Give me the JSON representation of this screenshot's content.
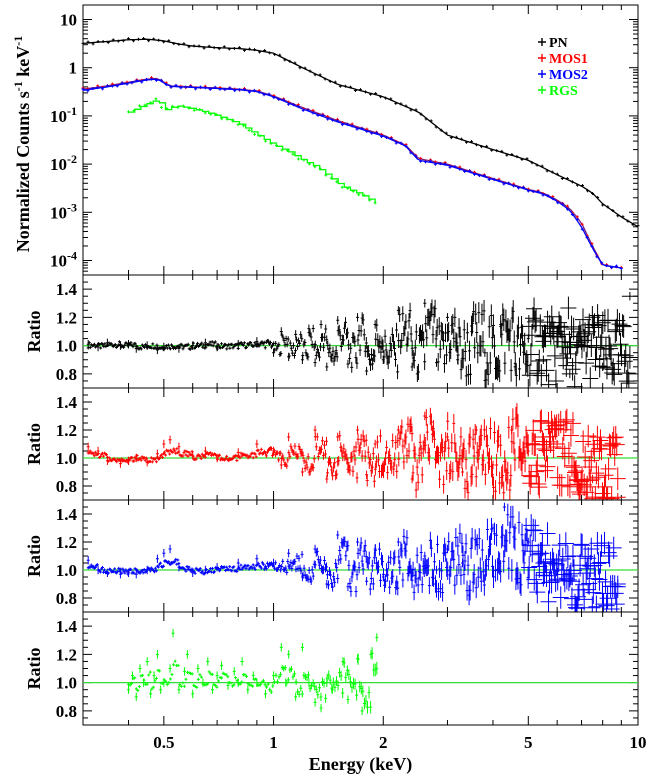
{
  "chart_data": [
    {
      "type": "line",
      "panel": "spectrum",
      "xlabel": "Energy (keV)",
      "ylabel_main": "Normalized Counts s",
      "ylabel_sup1": "-1",
      "ylabel_mid": " keV",
      "ylabel_sup2": "-1",
      "xscale": "log",
      "yscale": "log",
      "xlim": [
        0.3,
        10
      ],
      "ylim": [
        5e-05,
        20
      ],
      "x_ticks": [
        {
          "value": 0.5,
          "label": "0.5"
        },
        {
          "value": 1,
          "label": "1"
        },
        {
          "value": 2,
          "label": "2"
        },
        {
          "value": 5,
          "label": "5"
        },
        {
          "value": 10,
          "label": "10"
        }
      ],
      "y_ticks": [
        {
          "value": 0.0001,
          "base": "10",
          "exp": "-4"
        },
        {
          "value": 0.001,
          "base": "10",
          "exp": "-3"
        },
        {
          "value": 0.01,
          "base": "10",
          "exp": "-2"
        },
        {
          "value": 0.1,
          "base": "10",
          "exp": "-1"
        },
        {
          "value": 1,
          "base": "1",
          "exp": ""
        },
        {
          "value": 10,
          "base": "10",
          "exp": ""
        }
      ],
      "legend_position": "top-right",
      "series": [
        {
          "name": "PN",
          "color": "#000000",
          "x": [
            0.3,
            0.35,
            0.4,
            0.45,
            0.5,
            0.55,
            0.6,
            0.7,
            0.8,
            0.9,
            1.0,
            1.2,
            1.5,
            2.0,
            2.5,
            3.0,
            4.0,
            5.0,
            6.0,
            7.0,
            7.5,
            8.0,
            9.0,
            10.0
          ],
          "y": [
            3.2,
            3.5,
            3.8,
            3.9,
            3.6,
            3.1,
            2.8,
            2.6,
            2.5,
            2.3,
            2.0,
            1.0,
            0.45,
            0.25,
            0.12,
            0.04,
            0.02,
            0.012,
            0.006,
            0.0035,
            0.0025,
            0.0015,
            0.0008,
            0.0005
          ]
        },
        {
          "name": "MOS1",
          "color": "#ff0000",
          "x": [
            0.3,
            0.35,
            0.4,
            0.45,
            0.48,
            0.52,
            0.6,
            0.7,
            0.8,
            0.9,
            1.0,
            1.2,
            1.5,
            2.0,
            2.3,
            2.5,
            3.0,
            4.0,
            5.0,
            5.5,
            6.0,
            6.5,
            7.0,
            7.5,
            8.0,
            9.0
          ],
          "y": [
            0.36,
            0.42,
            0.5,
            0.58,
            0.6,
            0.42,
            0.4,
            0.38,
            0.36,
            0.33,
            0.26,
            0.15,
            0.08,
            0.04,
            0.025,
            0.013,
            0.01,
            0.005,
            0.003,
            0.0025,
            0.0018,
            0.0012,
            0.0006,
            0.0002,
            8e-05,
            7e-05
          ]
        },
        {
          "name": "MOS2",
          "color": "#0000ff",
          "x": [
            0.3,
            0.35,
            0.4,
            0.45,
            0.48,
            0.52,
            0.6,
            0.7,
            0.8,
            0.9,
            1.0,
            1.2,
            1.5,
            2.0,
            2.3,
            2.5,
            3.0,
            4.0,
            5.0,
            5.5,
            6.0,
            6.5,
            7.0,
            7.5,
            8.0,
            9.0
          ],
          "y": [
            0.34,
            0.4,
            0.48,
            0.56,
            0.58,
            0.41,
            0.39,
            0.37,
            0.35,
            0.32,
            0.25,
            0.14,
            0.075,
            0.038,
            0.024,
            0.012,
            0.0095,
            0.0048,
            0.0029,
            0.0024,
            0.0017,
            0.0011,
            0.0005,
            0.00018,
            8e-05,
            7e-05
          ]
        },
        {
          "name": "RGS",
          "color": "#00ff00",
          "x": [
            0.4,
            0.45,
            0.48,
            0.5,
            0.52,
            0.55,
            0.6,
            0.65,
            0.7,
            0.8,
            0.9,
            1.0,
            1.1,
            1.2,
            1.3,
            1.4,
            1.5,
            1.6,
            1.7,
            1.8,
            1.9
          ],
          "y": [
            0.12,
            0.18,
            0.22,
            0.13,
            0.15,
            0.16,
            0.14,
            0.12,
            0.1,
            0.07,
            0.04,
            0.025,
            0.018,
            0.012,
            0.009,
            0.006,
            0.004,
            0.003,
            0.0025,
            0.002,
            0.0016
          ]
        }
      ]
    },
    {
      "type": "scatter",
      "panel": "ratio-pn",
      "ylabel": "Ratio",
      "color": "#000000",
      "ylim": [
        0.7,
        1.5
      ],
      "y_ticks": [
        {
          "value": 0.8,
          "label": "0.8"
        },
        {
          "value": 1.0,
          "label": "1.0"
        },
        {
          "value": 1.2,
          "label": "1.2"
        },
        {
          "value": 1.4,
          "label": "1.4"
        }
      ],
      "reference_line": 1.0,
      "points": [
        [
          0.31,
          1.01
        ],
        [
          0.33,
          0.99
        ],
        [
          0.35,
          1.02
        ],
        [
          0.38,
          1.0
        ],
        [
          0.4,
          1.01
        ],
        [
          0.42,
          0.98
        ],
        [
          0.45,
          1.0
        ],
        [
          0.48,
          0.97
        ],
        [
          0.5,
          0.99
        ],
        [
          0.55,
          0.98
        ],
        [
          0.6,
          1.0
        ],
        [
          0.65,
          1.02
        ],
        [
          0.7,
          0.99
        ],
        [
          0.8,
          1.01
        ],
        [
          0.9,
          1.03
        ],
        [
          1.0,
          0.95
        ],
        [
          1.05,
          1.1
        ],
        [
          1.1,
          0.92
        ],
        [
          1.15,
          1.08
        ],
        [
          1.2,
          0.9
        ],
        [
          1.25,
          1.12
        ],
        [
          1.3,
          0.88
        ],
        [
          1.35,
          1.15
        ],
        [
          1.4,
          0.85
        ],
        [
          1.5,
          1.18
        ],
        [
          1.6,
          0.87
        ],
        [
          1.7,
          1.2
        ],
        [
          1.8,
          0.82
        ],
        [
          1.9,
          1.15
        ],
        [
          2.0,
          0.9
        ],
        [
          2.2,
          1.25
        ],
        [
          2.4,
          0.85
        ],
        [
          2.6,
          1.3
        ],
        [
          2.8,
          0.88
        ],
        [
          3.0,
          1.2
        ],
        [
          3.2,
          0.9
        ],
        [
          3.5,
          1.1
        ],
        [
          3.8,
          0.95
        ],
        [
          4.2,
          1.15
        ],
        [
          4.6,
          0.85
        ],
        [
          5.0,
          1.05
        ],
        [
          5.5,
          0.9
        ],
        [
          6.0,
          1.1
        ],
        [
          6.5,
          0.8
        ],
        [
          7.0,
          1.0
        ],
        [
          8.0,
          0.85
        ],
        [
          9.5,
          1.35
        ]
      ]
    },
    {
      "type": "scatter",
      "panel": "ratio-mos1",
      "ylabel": "Ratio",
      "color": "#ff0000",
      "ylim": [
        0.7,
        1.5
      ],
      "y_ticks": [
        {
          "value": 0.8,
          "label": "0.8"
        },
        {
          "value": 1.0,
          "label": "1.0"
        },
        {
          "value": 1.2,
          "label": "1.2"
        },
        {
          "value": 1.4,
          "label": "1.4"
        }
      ],
      "reference_line": 1.0,
      "points": [
        [
          0.31,
          1.08
        ],
        [
          0.33,
          1.05
        ],
        [
          0.35,
          0.98
        ],
        [
          0.38,
          0.96
        ],
        [
          0.4,
          0.98
        ],
        [
          0.42,
          1.0
        ],
        [
          0.45,
          0.97
        ],
        [
          0.48,
          1.03
        ],
        [
          0.5,
          1.1
        ],
        [
          0.52,
          1.13
        ],
        [
          0.55,
          1.08
        ],
        [
          0.6,
          1.02
        ],
        [
          0.65,
          1.05
        ],
        [
          0.7,
          1.0
        ],
        [
          0.8,
          1.04
        ],
        [
          0.9,
          1.1
        ],
        [
          1.0,
          1.05
        ],
        [
          1.05,
          0.95
        ],
        [
          1.1,
          1.15
        ],
        [
          1.2,
          0.9
        ],
        [
          1.3,
          1.2
        ],
        [
          1.4,
          0.85
        ],
        [
          1.5,
          1.15
        ],
        [
          1.6,
          0.92
        ],
        [
          1.7,
          1.2
        ],
        [
          1.8,
          0.88
        ],
        [
          1.9,
          1.1
        ],
        [
          2.0,
          0.95
        ],
        [
          2.2,
          1.2
        ],
        [
          2.4,
          0.85
        ],
        [
          2.6,
          1.3
        ],
        [
          2.8,
          1.0
        ],
        [
          3.0,
          1.15
        ],
        [
          3.3,
          0.9
        ],
        [
          3.6,
          1.2
        ],
        [
          4.0,
          0.95
        ],
        [
          4.5,
          1.2
        ],
        [
          5.0,
          1.05
        ],
        [
          5.5,
          1.15
        ],
        [
          6.0,
          1.1
        ],
        [
          6.8,
          0.84
        ],
        [
          7.5,
          0.85
        ],
        [
          8.8,
          0.72
        ]
      ]
    },
    {
      "type": "scatter",
      "panel": "ratio-mos2",
      "ylabel": "Ratio",
      "color": "#0000ff",
      "ylim": [
        0.7,
        1.5
      ],
      "y_ticks": [
        {
          "value": 0.8,
          "label": "0.8"
        },
        {
          "value": 1.0,
          "label": "1.0"
        },
        {
          "value": 1.2,
          "label": "1.2"
        },
        {
          "value": 1.4,
          "label": "1.4"
        }
      ],
      "reference_line": 1.0,
      "points": [
        [
          0.31,
          1.07
        ],
        [
          0.33,
          1.0
        ],
        [
          0.35,
          0.98
        ],
        [
          0.38,
          0.97
        ],
        [
          0.4,
          0.98
        ],
        [
          0.42,
          0.97
        ],
        [
          0.45,
          1.0
        ],
        [
          0.48,
          1.08
        ],
        [
          0.5,
          1.12
        ],
        [
          0.52,
          1.15
        ],
        [
          0.55,
          1.02
        ],
        [
          0.6,
          0.98
        ],
        [
          0.65,
          1.0
        ],
        [
          0.7,
          1.02
        ],
        [
          0.8,
          1.05
        ],
        [
          0.9,
          1.08
        ],
        [
          1.0,
          1.05
        ],
        [
          1.1,
          1.12
        ],
        [
          1.2,
          0.95
        ],
        [
          1.3,
          1.15
        ],
        [
          1.4,
          0.9
        ],
        [
          1.5,
          1.25
        ],
        [
          1.6,
          0.88
        ],
        [
          1.7,
          1.2
        ],
        [
          1.8,
          0.92
        ],
        [
          1.9,
          1.15
        ],
        [
          2.0,
          0.95
        ],
        [
          2.2,
          1.2
        ],
        [
          2.4,
          0.98
        ],
        [
          2.6,
          1.1
        ],
        [
          2.8,
          1.0
        ],
        [
          3.0,
          1.15
        ],
        [
          3.3,
          1.05
        ],
        [
          3.6,
          1.2
        ],
        [
          4.0,
          1.3
        ],
        [
          4.3,
          1.45
        ],
        [
          4.6,
          1.3
        ],
        [
          5.0,
          1.2
        ],
        [
          5.5,
          1.05
        ],
        [
          6.0,
          1.0
        ],
        [
          6.6,
          0.92
        ],
        [
          7.3,
          0.86
        ],
        [
          8.8,
          0.9
        ]
      ]
    },
    {
      "type": "scatter",
      "panel": "ratio-rgs",
      "ylabel": "Ratio",
      "color": "#00ff00",
      "ylim": [
        0.7,
        1.5
      ],
      "y_ticks": [
        {
          "value": 0.8,
          "label": "0.8"
        },
        {
          "value": 1.0,
          "label": "1.0"
        },
        {
          "value": 1.2,
          "label": "1.2"
        },
        {
          "value": 1.4,
          "label": "1.4"
        }
      ],
      "reference_line": 1.0,
      "points": [
        [
          0.4,
          0.95
        ],
        [
          0.41,
          1.05
        ],
        [
          0.42,
          0.9
        ],
        [
          0.43,
          1.1
        ],
        [
          0.44,
          1.0
        ],
        [
          0.45,
          1.15
        ],
        [
          0.46,
          0.92
        ],
        [
          0.47,
          1.05
        ],
        [
          0.48,
          1.2
        ],
        [
          0.49,
          0.95
        ],
        [
          0.5,
          1.0
        ],
        [
          0.52,
          1.1
        ],
        [
          0.53,
          1.35
        ],
        [
          0.55,
          0.95
        ],
        [
          0.57,
          1.08
        ],
        [
          0.58,
          1.2
        ],
        [
          0.6,
          0.92
        ],
        [
          0.62,
          1.1
        ],
        [
          0.64,
          1.0
        ],
        [
          0.66,
          1.15
        ],
        [
          0.68,
          0.95
        ],
        [
          0.7,
          1.05
        ],
        [
          0.72,
          1.12
        ],
        [
          0.75,
          0.98
        ],
        [
          0.78,
          1.08
        ],
        [
          0.8,
          1.0
        ],
        [
          0.82,
          1.15
        ],
        [
          0.85,
          0.95
        ],
        [
          0.88,
          1.05
        ],
        [
          0.9,
          1.0
        ],
        [
          0.95,
          0.92
        ],
        [
          1.0,
          1.05
        ],
        [
          1.05,
          1.25
        ],
        [
          1.08,
          1.0
        ],
        [
          1.1,
          1.2
        ],
        [
          1.15,
          0.9
        ],
        [
          1.2,
          1.25
        ],
        [
          1.25,
          1.0
        ],
        [
          1.3,
          0.86
        ],
        [
          1.35,
          0.82
        ],
        [
          1.4,
          1.0
        ],
        [
          1.45,
          0.95
        ],
        [
          1.55,
          1.15
        ],
        [
          1.6,
          0.88
        ],
        [
          1.7,
          1.17
        ],
        [
          1.75,
          0.8
        ],
        [
          1.85,
          1.2
        ],
        [
          1.92,
          1.32
        ]
      ]
    }
  ]
}
